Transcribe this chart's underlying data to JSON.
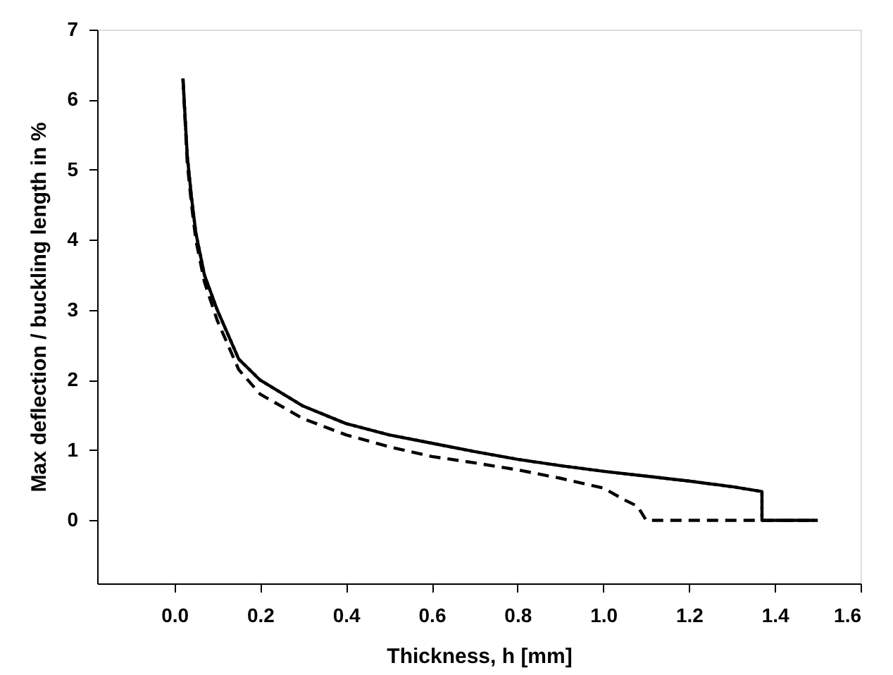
{
  "chart_data": {
    "type": "line",
    "xlabel": "Thickness, h [mm]",
    "ylabel": "Max deflection / buckling length in %",
    "xlim": [
      -0.18,
      1.6
    ],
    "ylim": [
      -0.9,
      7
    ],
    "xticks": [
      {
        "value": 0,
        "label": "0.0"
      },
      0.2,
      0.4,
      0.6,
      0.8,
      {
        "value": 1,
        "label": "1.0"
      },
      1.2,
      1.4,
      1.6
    ],
    "yticks": [
      0,
      1,
      2,
      3,
      4,
      5,
      6,
      7
    ],
    "grid": false,
    "marker": "none",
    "series": [
      {
        "color": "#000000",
        "line_style": "dashed",
        "x": [
          0.02,
          0.03,
          0.04,
          0.05,
          0.07,
          0.1,
          0.15,
          0.2,
          0.3,
          0.4,
          0.5,
          0.6,
          0.7,
          0.8,
          0.9,
          1.0,
          1.05,
          1.08,
          1.1,
          1.3,
          1.5
        ],
        "values": [
          6.3,
          5.1,
          4.5,
          4.0,
          3.4,
          2.85,
          2.15,
          1.8,
          1.45,
          1.22,
          1.05,
          0.91,
          0.82,
          0.72,
          0.6,
          0.46,
          0.29,
          0.2,
          0,
          0,
          0
        ]
      },
      {
        "color": "#000000",
        "line_style": "dotted",
        "x": [
          0.02,
          0.03,
          0.04,
          0.05,
          0.07,
          0.1,
          0.15,
          0.2,
          0.3,
          0.4,
          0.5,
          0.6,
          0.7,
          0.8,
          0.9,
          1.0,
          1.1,
          1.2,
          1.3,
          1.37,
          1.37,
          1.5
        ],
        "values": [
          6.3,
          5.2,
          4.6,
          4.1,
          3.5,
          3.0,
          2.3,
          2.0,
          1.63,
          1.38,
          1.22,
          1.1,
          0.98,
          0.87,
          0.78,
          0.7,
          0.63,
          0.56,
          0.48,
          0.41,
          0,
          0
        ]
      },
      {
        "color": "#000000",
        "line_style": "solid",
        "x": [
          0.02,
          0.03,
          0.04,
          0.05,
          0.07,
          0.1,
          0.15,
          0.2,
          0.3,
          0.4,
          0.5,
          0.6,
          0.7,
          0.8,
          0.9,
          1.0,
          1.1,
          1.2,
          1.3,
          1.37,
          1.37,
          1.5
        ],
        "values": [
          6.3,
          5.2,
          4.6,
          4.1,
          3.5,
          3.0,
          2.3,
          2.0,
          1.63,
          1.38,
          1.22,
          1.1,
          0.98,
          0.87,
          0.78,
          0.7,
          0.63,
          0.56,
          0.48,
          0.41,
          0,
          0
        ]
      }
    ]
  }
}
